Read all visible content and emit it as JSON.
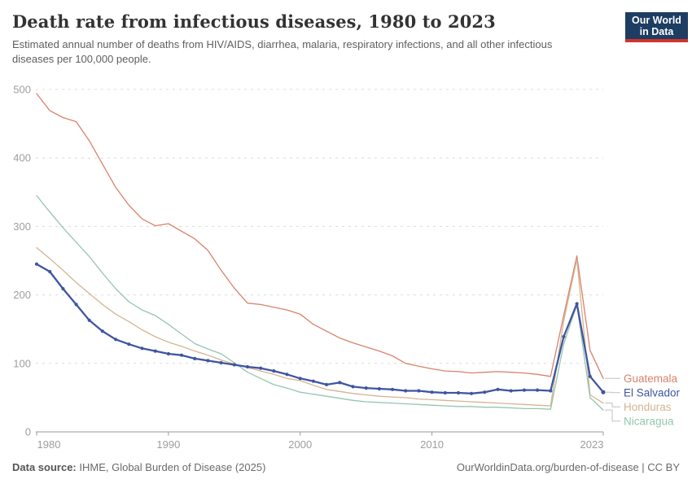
{
  "logo": {
    "line1": "Our World",
    "line2": "in Data"
  },
  "footer": {
    "source_label": "Data source:",
    "source_value": " IHME, Global Burden of Disease (2025)",
    "credit": "OurWorldinData.org/burden-of-disease | CC BY"
  },
  "chart_data": {
    "type": "line",
    "title": "Death rate from infectious diseases, 1980 to 2023",
    "subtitle": "Estimated annual number of deaths from HIV/AIDS, diarrhea, malaria, respiratory infections, and all other infectious diseases per 100,000 people.",
    "xlabel": "",
    "ylabel": "",
    "xlim": [
      1980,
      2023
    ],
    "ylim": [
      0,
      500
    ],
    "grid": "horizontal-dashed",
    "legend_position": "right-of-line-ends",
    "yticks": [
      0,
      100,
      200,
      300,
      400,
      500
    ],
    "xticks": [
      1980,
      1990,
      2000,
      2010,
      2023
    ],
    "x": [
      1980,
      1981,
      1982,
      1983,
      1984,
      1985,
      1986,
      1987,
      1988,
      1989,
      1990,
      1991,
      1992,
      1993,
      1994,
      1995,
      1996,
      1997,
      1998,
      1999,
      2000,
      2001,
      2002,
      2003,
      2004,
      2005,
      2006,
      2007,
      2008,
      2009,
      2010,
      2011,
      2012,
      2013,
      2014,
      2015,
      2016,
      2017,
      2018,
      2019,
      2020,
      2021,
      2022,
      2023
    ],
    "series": [
      {
        "name": "Guatemala",
        "color": "#d8826b",
        "markers": false,
        "values": [
          494,
          469,
          459,
          453,
          425,
          391,
          357,
          331,
          311,
          301,
          304,
          293,
          282,
          265,
          236,
          210,
          188,
          186,
          182,
          178,
          172,
          157,
          147,
          137,
          130,
          124,
          118,
          111,
          100,
          96,
          92,
          89,
          88,
          86,
          87,
          88,
          87,
          86,
          84,
          81,
          170,
          257,
          119,
          78
        ]
      },
      {
        "name": "El Salvador",
        "color": "#3f55a2",
        "markers": true,
        "values": [
          245,
          234,
          209,
          186,
          163,
          147,
          135,
          128,
          122,
          118,
          114,
          112,
          107,
          104,
          101,
          98,
          95,
          93,
          89,
          84,
          78,
          74,
          69,
          72,
          66,
          64,
          63,
          62,
          60,
          60,
          58,
          57,
          57,
          56,
          58,
          62,
          60,
          61,
          61,
          60,
          139,
          187,
          81,
          58
        ]
      },
      {
        "name": "Honduras",
        "color": "#d3b590",
        "markers": false,
        "values": [
          269,
          253,
          236,
          218,
          202,
          186,
          172,
          161,
          149,
          139,
          131,
          125,
          118,
          112,
          105,
          99,
          94,
          89,
          84,
          78,
          75,
          68,
          62,
          59,
          56,
          54,
          52,
          51,
          50,
          48,
          47,
          46,
          45,
          44,
          43,
          42,
          41,
          40,
          39,
          38,
          162,
          252,
          54,
          42
        ]
      },
      {
        "name": "Nicaragua",
        "color": "#95c6ae",
        "markers": false,
        "values": [
          345,
          321,
          298,
          277,
          256,
          232,
          209,
          190,
          178,
          170,
          157,
          143,
          129,
          121,
          114,
          101,
          87,
          78,
          69,
          64,
          58,
          55,
          52,
          49,
          46,
          44,
          43,
          42,
          41,
          40,
          39,
          38,
          37,
          37,
          36,
          36,
          35,
          34,
          34,
          33,
          128,
          186,
          50,
          32
        ]
      }
    ],
    "colors": {
      "grid": "#dcdcdc",
      "axis": "#9a9a9a",
      "tick_text": "#9e9e9e",
      "legend_connector": "#c0c0c0"
    }
  }
}
